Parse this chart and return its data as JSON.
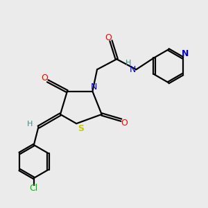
{
  "bg_color": "#ebebeb",
  "atom_colors": {
    "C": "#000000",
    "N": "#0000cc",
    "O": "#ff0000",
    "S": "#cccc00",
    "Cl": "#00bb00",
    "H": "#448888"
  },
  "bond_lw": 1.6,
  "double_sep": 0.1
}
